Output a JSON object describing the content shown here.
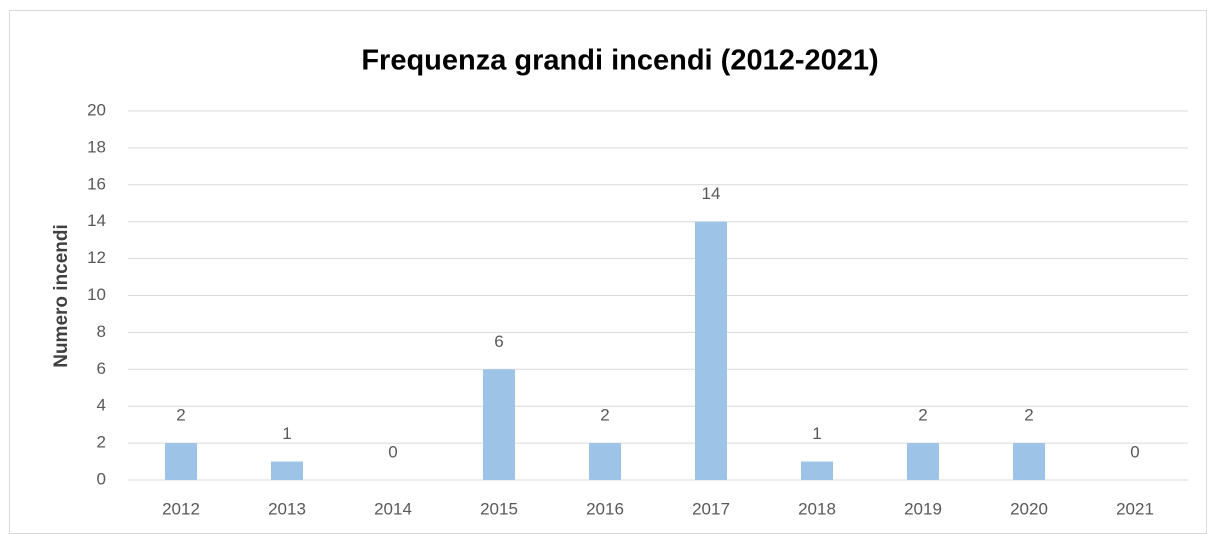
{
  "chart_data": {
    "type": "bar",
    "title": "Frequenza grandi incendi (2012-2021)",
    "y_label": "Numero incendi",
    "categories": [
      "2012",
      "2013",
      "2014",
      "2015",
      "2016",
      "2017",
      "2018",
      "2019",
      "2020",
      "2021"
    ],
    "values": [
      2,
      1,
      0,
      6,
      2,
      14,
      1,
      2,
      2,
      0
    ],
    "color": "#9dc3e6",
    "ylim": [
      0,
      20
    ],
    "yticks": [
      0,
      2,
      4,
      6,
      8,
      10,
      12,
      14,
      16,
      18,
      20
    ],
    "grid": true
  }
}
